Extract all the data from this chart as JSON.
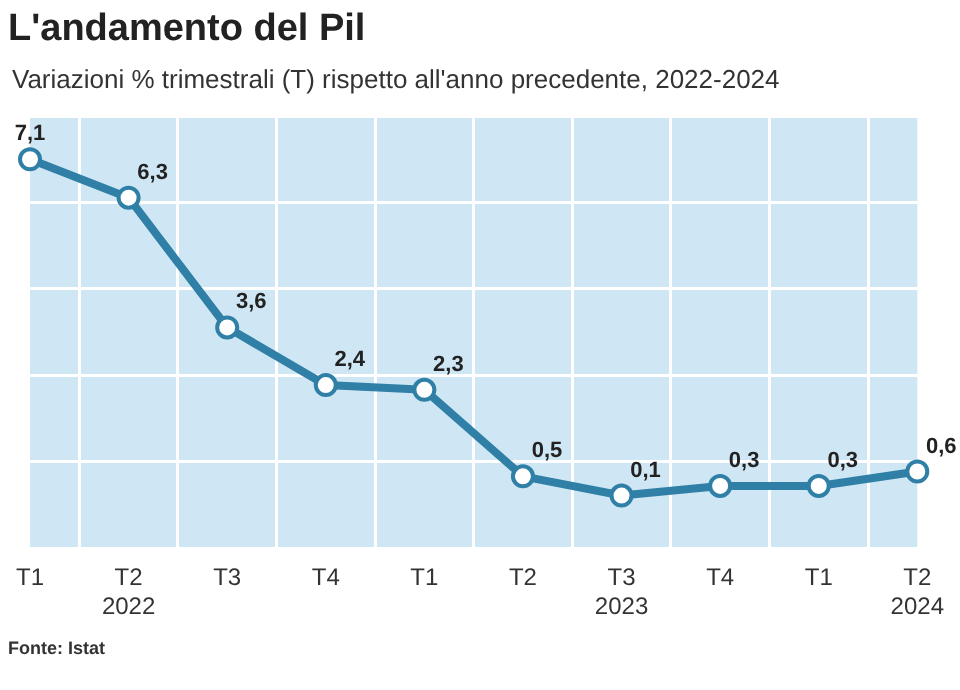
{
  "chart_data": {
    "type": "line",
    "title": "L'andamento del Pil",
    "subtitle": "Variazioni % trimestrali (T) rispetto all'anno precedente, 2022-2024",
    "categories": [
      "T1",
      "T2\n2022",
      "T3",
      "T4",
      "T1",
      "T2",
      "T3\n2023",
      "T4",
      "T1",
      "T2\n2024"
    ],
    "series": [
      {
        "color": "#2f7fa6",
        "values": [
          7.1,
          6.3,
          3.6,
          2.4,
          2.3,
          0.5,
          0.1,
          0.3,
          0.3,
          0.6
        ],
        "value_labels": [
          "7,1",
          "6,3",
          "3,6",
          "2,4",
          "2,3",
          "0,5",
          "0,1",
          "0,3",
          "0,3",
          "0,6"
        ]
      }
    ],
    "tick_labels": "x",
    "grid": true,
    "legend": false,
    "marker": "circle",
    "line_style": "solid",
    "annotations": [
      "Fonte: Istat"
    ]
  }
}
